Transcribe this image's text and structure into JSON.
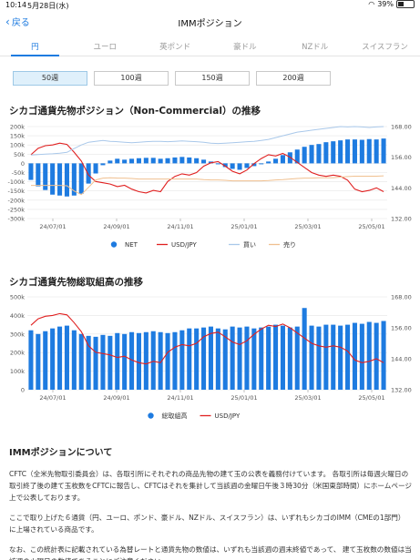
{
  "status_bar": {
    "time": "10:14",
    "date": "5月28日(水)",
    "battery": "39%"
  },
  "nav": {
    "back_label": "戻る",
    "title": "IMMポジション"
  },
  "tabs": [
    {
      "label": "円",
      "active": true
    },
    {
      "label": "ユーロ",
      "active": false
    },
    {
      "label": "英ポンド",
      "active": false
    },
    {
      "label": "豪ドル",
      "active": false
    },
    {
      "label": "NZドル",
      "active": false
    },
    {
      "label": "スイスフラン",
      "active": false
    }
  ],
  "periods": [
    {
      "label": "50週",
      "active": true
    },
    {
      "label": "100週",
      "active": false
    },
    {
      "label": "150週",
      "active": false
    },
    {
      "label": "200週",
      "active": false
    }
  ],
  "colors": {
    "accent": "#1e7be0",
    "net": "#1e7be0",
    "usdjpy": "#e02020",
    "buy": "#a9c8ea",
    "sell": "#f0c090"
  },
  "chart_data": [
    {
      "type": "bar",
      "title": "シカゴ通貨先物ポジション（Non-Commercial）の推移",
      "x_ticks": [
        "24/07/01",
        "24/09/01",
        "24/11/01",
        "25/01/01",
        "25/03/01",
        "25/05/01"
      ],
      "y_left_ticks": [
        "200k",
        "150k",
        "100k",
        "50k",
        "0",
        "-50k",
        "-100k",
        "-150k",
        "-200k",
        "-250k",
        "-300k"
      ],
      "y_left_range": [
        -300000,
        200000
      ],
      "y_right_ticks": [
        "168.00",
        "156.00",
        "144.00",
        "132.00"
      ],
      "y_right_range": [
        132,
        168
      ],
      "series": [
        {
          "name": "NET",
          "kind": "bar",
          "values": [
            -90000,
            -125000,
            -145000,
            -170000,
            -175000,
            -180000,
            -175000,
            -165000,
            -110000,
            -55000,
            -10000,
            15000,
            25000,
            20000,
            25000,
            28000,
            30000,
            30000,
            25000,
            28000,
            32000,
            35000,
            32000,
            28000,
            20000,
            10000,
            -5000,
            -20000,
            -30000,
            -35000,
            -25000,
            -15000,
            -5000,
            10000,
            25000,
            45000,
            60000,
            75000,
            90000,
            100000,
            105000,
            115000,
            120000,
            125000,
            130000,
            130000,
            128000,
            132000,
            130000,
            135000
          ]
        },
        {
          "name": "USD/JPY",
          "kind": "line",
          "values": [
            157.0,
            159.5,
            160.5,
            160.8,
            161.5,
            161.0,
            158.0,
            154.5,
            149.0,
            146.5,
            146.0,
            145.5,
            144.5,
            145.0,
            143.5,
            142.5,
            142.0,
            143.0,
            142.5,
            146.5,
            148.5,
            149.5,
            149.0,
            150.0,
            152.5,
            153.8,
            154.3,
            152.5,
            150.5,
            149.5,
            151.0,
            153.5,
            155.5,
            157.0,
            156.5,
            157.5,
            156.0,
            154.0,
            152.0,
            150.0,
            149.0,
            148.5,
            149.0,
            148.5,
            147.0,
            143.5,
            142.5,
            143.0,
            144.0,
            142.5
          ]
        },
        {
          "name": "買い",
          "kind": "line",
          "values": [
            45000,
            48000,
            50000,
            52000,
            55000,
            60000,
            80000,
            100000,
            115000,
            120000,
            125000,
            120000,
            118000,
            115000,
            112000,
            115000,
            118000,
            120000,
            120000,
            118000,
            120000,
            122000,
            120000,
            118000,
            115000,
            110000,
            108000,
            110000,
            112000,
            115000,
            118000,
            120000,
            125000,
            130000,
            140000,
            150000,
            160000,
            170000,
            175000,
            180000,
            185000,
            190000,
            195000,
            200000,
            198000,
            200000,
            198000,
            195000,
            198000,
            200000
          ]
        },
        {
          "name": "売り",
          "kind": "line",
          "values": [
            -120000,
            -120000,
            -120000,
            -120000,
            -120000,
            -122000,
            -150000,
            -170000,
            -130000,
            -90000,
            -80000,
            -78000,
            -80000,
            -80000,
            -82000,
            -85000,
            -85000,
            -85000,
            -85000,
            -85000,
            -85000,
            -85000,
            -85000,
            -85000,
            -88000,
            -90000,
            -90000,
            -92000,
            -95000,
            -95000,
            -95000,
            -95000,
            -95000,
            -93000,
            -90000,
            -88000,
            -85000,
            -82000,
            -80000,
            -80000,
            -78000,
            -78000,
            -78000,
            -75000,
            -72000,
            -70000,
            -70000,
            -70000,
            -70000,
            -68000
          ]
        }
      ]
    },
    {
      "type": "bar",
      "title": "シカゴ通貨先物総取組高の推移",
      "x_ticks": [
        "24/07/01",
        "24/09/01",
        "24/11/01",
        "25/01/01",
        "25/03/01",
        "25/05/01"
      ],
      "y_left_ticks": [
        "500k",
        "400k",
        "300k",
        "200k",
        "100k",
        "0"
      ],
      "y_left_range": [
        0,
        500000
      ],
      "y_right_ticks": [
        "168.00",
        "156.00",
        "144.00",
        "132.00"
      ],
      "y_right_range": [
        132,
        168
      ],
      "series": [
        {
          "name": "総取組高",
          "kind": "bar",
          "values": [
            320000,
            300000,
            315000,
            330000,
            340000,
            345000,
            320000,
            300000,
            290000,
            285000,
            295000,
            290000,
            305000,
            300000,
            310000,
            305000,
            310000,
            315000,
            310000,
            305000,
            310000,
            320000,
            330000,
            330000,
            335000,
            340000,
            330000,
            325000,
            340000,
            335000,
            340000,
            330000,
            335000,
            340000,
            350000,
            345000,
            335000,
            340000,
            440000,
            345000,
            340000,
            350000,
            350000,
            345000,
            350000,
            360000,
            355000,
            365000,
            360000,
            370000
          ]
        },
        {
          "name": "USD/JPY",
          "kind": "line",
          "values": [
            157.0,
            159.5,
            160.5,
            160.8,
            161.5,
            161.0,
            158.0,
            154.5,
            149.0,
            146.5,
            146.0,
            145.5,
            144.5,
            145.0,
            143.5,
            142.5,
            142.0,
            143.0,
            142.5,
            146.5,
            148.5,
            149.5,
            149.0,
            150.0,
            152.5,
            153.8,
            154.3,
            152.5,
            150.5,
            149.5,
            151.0,
            153.5,
            155.5,
            157.0,
            156.5,
            157.5,
            156.0,
            154.0,
            152.0,
            150.0,
            149.0,
            148.5,
            149.0,
            148.5,
            147.0,
            143.5,
            142.5,
            143.0,
            144.0,
            142.5
          ]
        }
      ]
    }
  ],
  "info": {
    "title": "IMMポジションについて",
    "paragraphs": [
      "CFTC（全米先物取引委員会）は、各取引所にそれぞれの商品先物の建て玉の公表を義務付けています。 各取引所は毎週火曜日の取引終了後の建て玉枚数をCFTCに報告し、CFTCはそれを集計して当該週の金曜日午後３時30分（米国東部時間）にホームページ上で公表しております。",
      "ここで取り上げた６通貨（円、ユーロ、ポンド、豪ドル、NZドル、スイスフラン）は、いずれもシカゴのIMM（CMEの1部門）に上場されている商品です。",
      "なお、この統計表に記載されている為替レートと通貨先物の数値は、いずれも当該週の週末終値であって、 建て玉枚数の数値は当該週の火曜日の数値であることにご注意ください。"
    ]
  }
}
